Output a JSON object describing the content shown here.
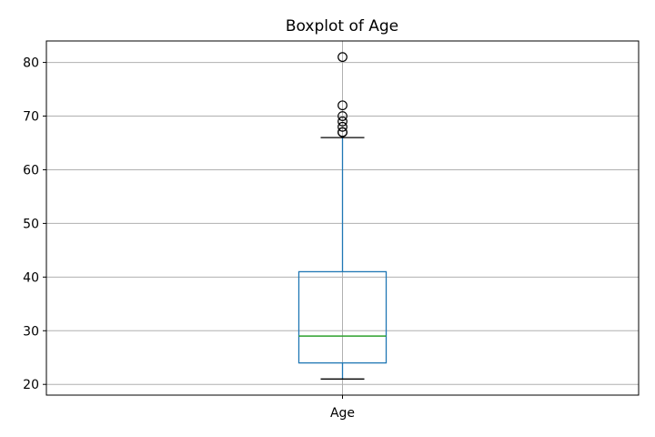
{
  "chart_data": {
    "type": "boxplot",
    "title": "Boxplot of Age",
    "categories": [
      "Age"
    ],
    "ylim": [
      18,
      84
    ],
    "yticks": [
      20,
      30,
      40,
      50,
      60,
      70,
      80
    ],
    "grid": true,
    "box": {
      "whisker_low": 21,
      "q1": 24,
      "median": 29,
      "q3": 41,
      "whisker_high": 66
    },
    "outliers": [
      67,
      67,
      68,
      69,
      70,
      72,
      81
    ],
    "colors": {
      "box": "#1f77b4",
      "median": "#2ca02c",
      "whisker_cap": "#000000",
      "outlier": "#000000",
      "grid": "#b0b0b0"
    }
  }
}
